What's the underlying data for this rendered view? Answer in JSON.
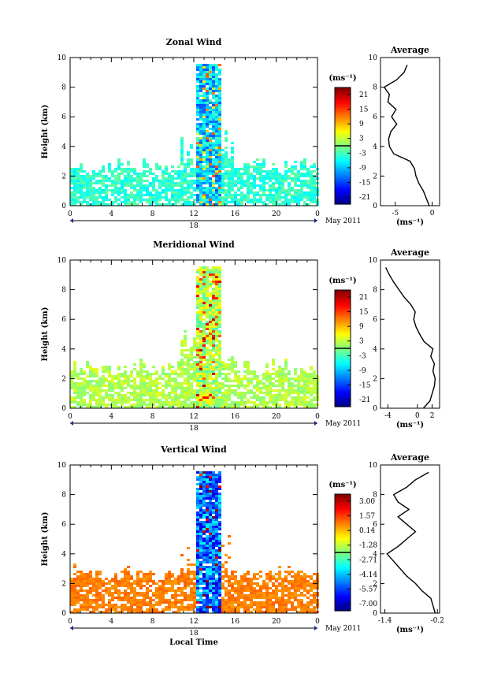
{
  "chart_data": [
    {
      "type": "heatmap",
      "title": "Zonal Wind",
      "ylabel": "Height (km)",
      "xlabel": "",
      "xlim": [
        0,
        24
      ],
      "ylim": [
        0,
        10
      ],
      "xticks": [
        "0",
        "4",
        "8",
        "12",
        "16",
        "20",
        "0"
      ],
      "yticks": [
        "0",
        "2",
        "4",
        "6",
        "8",
        "10"
      ],
      "day_label": "18",
      "date_label": "May 2011",
      "units": "(ms⁻¹)",
      "colorbar_ticks": [
        "21",
        "15",
        "9",
        "3",
        "-3",
        "-9",
        "-15",
        "-21"
      ],
      "colorbar_range": [
        -24,
        24
      ],
      "profile": {
        "title": "Average",
        "xlabel": "(ms⁻¹)",
        "xlim": [
          -7,
          1
        ],
        "xticks": [
          "-5",
          "0"
        ],
        "xtick_values": [
          -5,
          0
        ],
        "yticks": [
          "0",
          "2",
          "4",
          "6",
          "8",
          "10"
        ],
        "heights": [
          0,
          0.5,
          1,
          1.5,
          2,
          2.5,
          3,
          3.5,
          4,
          4.5,
          5,
          5.5,
          6,
          6.5,
          7,
          7.5,
          8,
          8.5,
          9,
          9.5
        ],
        "values": [
          -0.4,
          -0.8,
          -1.2,
          -1.8,
          -2.2,
          -2.4,
          -3,
          -5.2,
          -5.8,
          -5.9,
          -5.6,
          -4.8,
          -5.5,
          -4.9,
          -6.0,
          -5.8,
          -6.5,
          -4.8,
          -3.8,
          -3.4
        ]
      }
    },
    {
      "type": "heatmap",
      "title": "Meridional Wind",
      "ylabel": "Height (km)",
      "xlabel": "",
      "xlim": [
        0,
        24
      ],
      "ylim": [
        0,
        10
      ],
      "xticks": [
        "0",
        "4",
        "8",
        "12",
        "16",
        "20",
        "0"
      ],
      "yticks": [
        "0",
        "2",
        "4",
        "6",
        "8",
        "10"
      ],
      "day_label": "18",
      "date_label": "May 2011",
      "units": "(ms⁻¹)",
      "colorbar_ticks": [
        "21",
        "15",
        "9",
        "3",
        "-3",
        "-9",
        "-15",
        "-21"
      ],
      "colorbar_range": [
        -24,
        24
      ],
      "profile": {
        "title": "Average",
        "xlabel": "(ms⁻¹)",
        "xlim": [
          -5,
          3
        ],
        "xticks": [
          "-4",
          "0",
          "2"
        ],
        "xtick_values": [
          -4,
          0,
          2
        ],
        "yticks": [
          "0",
          "2",
          "4",
          "6",
          "8",
          "10"
        ],
        "heights": [
          0,
          0.5,
          1,
          1.5,
          2,
          2.5,
          3,
          3.5,
          4,
          4.5,
          5,
          5.5,
          6,
          6.5,
          7,
          7.5,
          8,
          8.5,
          9,
          9.5
        ],
        "values": [
          0.8,
          1.7,
          2.0,
          2.3,
          2.4,
          2.1,
          2.3,
          1.8,
          2.1,
          0.9,
          0.3,
          -0.2,
          -0.5,
          -0.3,
          -0.9,
          -1.8,
          -2.5,
          -3.2,
          -3.8,
          -4.3
        ]
      }
    },
    {
      "type": "heatmap",
      "title": "Vertical Wind",
      "ylabel": "Height (km)",
      "xlabel": "Local Time",
      "xlim": [
        0,
        24
      ],
      "ylim": [
        0,
        10
      ],
      "xticks": [
        "0",
        "4",
        "8",
        "12",
        "16",
        "20",
        "0"
      ],
      "yticks": [
        "0",
        "2",
        "4",
        "6",
        "8",
        "10"
      ],
      "day_label": "18",
      "date_label": "May 2011",
      "units": "(ms⁻¹)",
      "colorbar_ticks": [
        "3.00",
        "1.57",
        "0.14",
        "-1.28",
        "-2.71",
        "-4.14",
        "-5.57",
        "-7.00"
      ],
      "colorbar_range": [
        -7.5,
        3.5
      ],
      "profile": {
        "title": "Average",
        "xlabel": "(ms⁻¹)",
        "xlim": [
          -1.5,
          -0.15
        ],
        "xticks": [
          "-1.4",
          "-0.2"
        ],
        "xtick_values": [
          -1.4,
          -0.2
        ],
        "yticks": [
          "0",
          "2",
          "4",
          "6",
          "8",
          "10"
        ],
        "heights": [
          0,
          0.5,
          1,
          1.5,
          2,
          2.5,
          3,
          3.5,
          4,
          4.5,
          5,
          5.5,
          6,
          6.5,
          7,
          7.5,
          8,
          8.5,
          9,
          9.5
        ],
        "values": [
          -0.25,
          -0.3,
          -0.35,
          -0.55,
          -0.7,
          -0.9,
          -1.05,
          -1.2,
          -1.35,
          -1.1,
          -0.9,
          -0.7,
          -0.9,
          -1.1,
          -0.85,
          -1.1,
          -1.2,
          -0.9,
          -0.7,
          -0.4
        ]
      }
    }
  ]
}
